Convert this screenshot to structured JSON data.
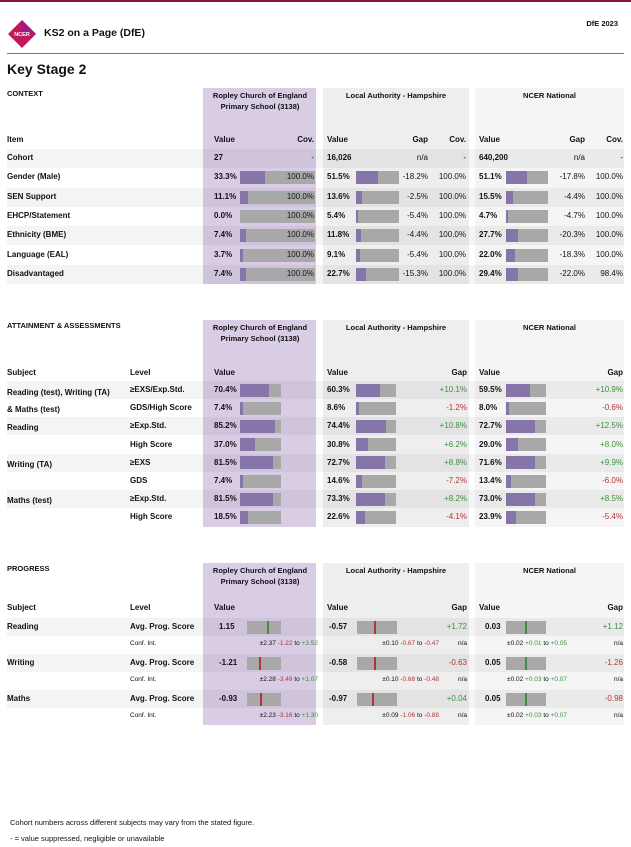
{
  "header": {
    "logo": "NCER",
    "app": "KS2 on a Page (DfE)",
    "year": "DfE 2023",
    "title": "Key Stage 2"
  },
  "colors": {
    "school": "#d9cde6",
    "bar": "#8575a8",
    "barbg": "#a8a8a8",
    "pos": "#3f8f3f",
    "neg": "#b0353b",
    "brand": "#8a1538"
  },
  "school_name": "Ropley Church of England Primary School (3138)",
  "la_name": "Local Authority - Hampshire",
  "nat_name": "NCER National",
  "context": {
    "title": "CONTEXT",
    "h": {
      "item": "Item",
      "value": "Value",
      "cov": "Cov.",
      "gap": "Gap"
    },
    "rows": [
      {
        "item": "Cohort",
        "s": "27",
        "sc": "-",
        "l": "16,026",
        "lg": "n/a",
        "lc": "-",
        "n": "640,200",
        "ng": "n/a",
        "nc": "-"
      },
      {
        "item": "Gender (Male)",
        "s": "33.3%",
        "sp": 0.333,
        "sc": "100.0%",
        "l": "51.5%",
        "lp": 0.515,
        "lg": "-18.2%",
        "lc": "100.0%",
        "n": "51.1%",
        "np": 0.511,
        "ng": "-17.8%",
        "nc": "100.0%"
      },
      {
        "item": "SEN Support",
        "s": "11.1%",
        "sp": 0.111,
        "sc": "100.0%",
        "l": "13.6%",
        "lp": 0.136,
        "lg": "-2.5%",
        "lc": "100.0%",
        "n": "15.5%",
        "np": 0.155,
        "ng": "-4.4%",
        "nc": "100.0%"
      },
      {
        "item": "EHCP/Statement",
        "s": "0.0%",
        "sp": 0,
        "sc": "100.0%",
        "l": "5.4%",
        "lp": 0.054,
        "lg": "-5.4%",
        "lc": "100.0%",
        "n": "4.7%",
        "np": 0.047,
        "ng": "-4.7%",
        "nc": "100.0%"
      },
      {
        "item": "Ethnicity (BME)",
        "s": "7.4%",
        "sp": 0.074,
        "sc": "100.0%",
        "l": "11.8%",
        "lp": 0.118,
        "lg": "-4.4%",
        "lc": "100.0%",
        "n": "27.7%",
        "np": 0.277,
        "ng": "-20.3%",
        "nc": "100.0%"
      },
      {
        "item": "Language (EAL)",
        "s": "3.7%",
        "sp": 0.037,
        "sc": "100.0%",
        "l": "9.1%",
        "lp": 0.091,
        "lg": "-5.4%",
        "lc": "100.0%",
        "n": "22.0%",
        "np": 0.22,
        "ng": "-18.3%",
        "nc": "100.0%"
      },
      {
        "item": "Disadvantaged",
        "s": "7.4%",
        "sp": 0.074,
        "sc": "100.0%",
        "l": "22.7%",
        "lp": 0.227,
        "lg": "-15.3%",
        "lc": "100.0%",
        "n": "29.4%",
        "np": 0.294,
        "ng": "-22.0%",
        "nc": "98.4%"
      }
    ]
  },
  "attain": {
    "title": "ATTAINMENT & ASSESSMENTS",
    "h": {
      "subject": "Subject",
      "level": "Level",
      "value": "Value",
      "gap": "Gap"
    },
    "subjects": [
      "Reading (test), Writing (TA)",
      "& Maths (test)",
      "Reading",
      "Writing (TA)",
      "Maths (test)"
    ],
    "rows": [
      {
        "level": "≥EXS/Exp.Std.",
        "s": "70.4%",
        "sp": 0.704,
        "l": "60.3%",
        "lp": 0.603,
        "lg": "+10.1%",
        "n": "59.5%",
        "np": 0.595,
        "ng": "+10.9%"
      },
      {
        "level": "GDS/High Score",
        "s": "7.4%",
        "sp": 0.074,
        "l": "8.6%",
        "lp": 0.086,
        "lg": "-1.2%",
        "n": "8.0%",
        "np": 0.08,
        "ng": "-0.6%"
      },
      {
        "level": "≥Exp.Std.",
        "s": "85.2%",
        "sp": 0.852,
        "l": "74.4%",
        "lp": 0.744,
        "lg": "+10.8%",
        "n": "72.7%",
        "np": 0.727,
        "ng": "+12.5%"
      },
      {
        "level": "High Score",
        "s": "37.0%",
        "sp": 0.37,
        "l": "30.8%",
        "lp": 0.308,
        "lg": "+6.2%",
        "n": "29.0%",
        "np": 0.29,
        "ng": "+8.0%"
      },
      {
        "level": "≥EXS",
        "s": "81.5%",
        "sp": 0.815,
        "l": "72.7%",
        "lp": 0.727,
        "lg": "+8.8%",
        "n": "71.6%",
        "np": 0.716,
        "ng": "+9.9%"
      },
      {
        "level": "GDS",
        "s": "7.4%",
        "sp": 0.074,
        "l": "14.6%",
        "lp": 0.146,
        "lg": "-7.2%",
        "n": "13.4%",
        "np": 0.134,
        "ng": "-6.0%"
      },
      {
        "level": "≥Exp.Std.",
        "s": "81.5%",
        "sp": 0.815,
        "l": "73.3%",
        "lp": 0.733,
        "lg": "+8.2%",
        "n": "73.0%",
        "np": 0.73,
        "ng": "+8.5%"
      },
      {
        "level": "High Score",
        "s": "18.5%",
        "sp": 0.185,
        "l": "22.6%",
        "lp": 0.226,
        "lg": "-4.1%",
        "n": "23.9%",
        "np": 0.239,
        "ng": "-5.4%"
      }
    ]
  },
  "progress": {
    "title": "PROGRESS",
    "h": {
      "subject": "Subject",
      "level": "Level",
      "value": "Value",
      "gap": "Gap"
    },
    "to": "to",
    "rows": [
      {
        "subject": "Reading",
        "level": "Avg. Prog. Score",
        "ci": "Conf. Int.",
        "s": "1.15",
        "sv": 1.15,
        "s_pm": "±2.37",
        "s_lo": "-1.22",
        "s_hi": "+3.52",
        "l": "-0.57",
        "lv": -0.57,
        "l_pm": "±0.10",
        "l_lo": "-0.67",
        "l_hi": "-0.47",
        "lg": "+1.72",
        "lgna": "n/a",
        "n": "0.03",
        "nv": 0.03,
        "n_pm": "±0.02",
        "n_lo": "+0.01",
        "n_hi": "+0.05",
        "ng": "+1.12",
        "ngna": "n/a"
      },
      {
        "subject": "Writing",
        "level": "Avg. Prog. Score",
        "ci": "Conf. Int.",
        "s": "-1.21",
        "sv": -1.21,
        "s_pm": "±2.28",
        "s_lo": "-3.49",
        "s_hi": "+1.07",
        "l": "-0.58",
        "lv": -0.58,
        "l_pm": "±0.10",
        "l_lo": "-0.68",
        "l_hi": "-0.48",
        "lg": "-0.63",
        "lgna": "n/a",
        "n": "0.05",
        "nv": 0.05,
        "n_pm": "±0.02",
        "n_lo": "+0.03",
        "n_hi": "+0.07",
        "ng": "-1.26",
        "ngna": "n/a"
      },
      {
        "subject": "Maths",
        "level": "Avg. Prog. Score",
        "ci": "Conf. Int.",
        "s": "-0.93",
        "sv": -0.93,
        "s_pm": "±2.23",
        "s_lo": "-3.16",
        "s_hi": "+1.30",
        "l": "-0.97",
        "lv": -0.97,
        "l_pm": "±0.09",
        "l_lo": "-1.06",
        "l_hi": "-0.88",
        "lg": "+0.04",
        "lgna": "n/a",
        "n": "0.05",
        "nv": 0.05,
        "n_pm": "±0.02",
        "n_lo": "+0.03",
        "n_hi": "+0.07",
        "ng": "-0.98",
        "ngna": "n/a"
      }
    ]
  },
  "footer": {
    "note1": "Cohort numbers across different subjects may vary from the stated figure.",
    "note2": "- = value suppressed, negligible or unavailable"
  }
}
